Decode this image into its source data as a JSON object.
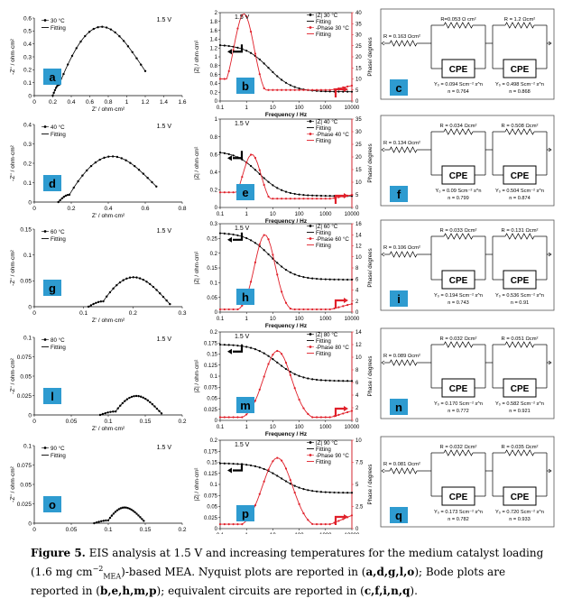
{
  "figure": {
    "rows": [
      {
        "temp": 30,
        "nyq": {
          "letter": "a",
          "legend": [
            "30 °C",
            "Fitting"
          ],
          "voltage": "1.5 V",
          "xlim": [
            0,
            1.6
          ],
          "ylim": [
            0,
            0.6
          ],
          "xticks": [
            "0",
            "0.2",
            "0.4",
            "0.6",
            "0.8",
            "1",
            "1.2",
            "1.4",
            "1.6"
          ],
          "yticks": [
            "0",
            "0.1",
            "0.2",
            "0.3",
            "0.4",
            "0.5",
            "0.6"
          ],
          "xlabel": "Z' / ohm·cm²",
          "ylabel": "-Z'' / ohm·cm²",
          "curve": {
            "x0": 0.2,
            "bend": 0.27,
            "xmax": 1.2,
            "peak_x": 0.8,
            "peak_y": 0.47,
            "end_y": 0.19
          }
        },
        "bode": {
          "letter": "b",
          "voltage": "1.5 V",
          "legend": [
            "|Z| 30 °C",
            "Fitting",
            "-Phase 30 °C",
            "Fitting"
          ],
          "yleft": [
            0,
            2
          ],
          "yright": [
            0,
            40
          ],
          "lticks": [
            "0",
            "0.2",
            "0.4",
            "0.6",
            "0.8",
            "1",
            "1.2",
            "1.4",
            "1.6",
            "1.8",
            "2"
          ],
          "rticks": [
            "0",
            "5",
            "10",
            "15",
            "20",
            "25",
            "30",
            "35",
            "40"
          ],
          "xticks": [
            "0.1",
            "1",
            "10",
            "100",
            "1000",
            "10000"
          ],
          "xlabel": "Frequency / Hz",
          "ylabel_l": "|Z| / ohm·cm²",
          "ylabel_r": "Phase/ degrees",
          "z": {
            "hi": 1.28,
            "lo": 0.21,
            "f50": 7
          },
          "phase": {
            "peak": 39.5,
            "fpk": 0.8,
            "w": 0.55,
            "low": 10,
            "hf": 2,
            "baseline": 5
          }
        },
        "circuit": {
          "letter": "c",
          "Rs": "R = 0.163 Ωcm²",
          "cpe1": {
            "R": "R=0.053 Ω cm²",
            "Y": "Y₀ = 0.094 Scm⁻² s^n",
            "n": "n = 0.764"
          },
          "cpe2": {
            "R": "R = 1.2 Ωcm²",
            "Y": "Y₀ = 0.498 Scm⁻² s^n",
            "n": "n = 0.868"
          },
          "cpe_label": "CPE"
        }
      },
      {
        "temp": 40,
        "nyq": {
          "letter": "d",
          "legend": [
            "40 °C",
            "Fitting"
          ],
          "voltage": "1.5 V",
          "xlim": [
            0,
            0.8
          ],
          "ylim": [
            0,
            0.4
          ],
          "xticks": [
            "0",
            "0.2",
            "0.4",
            "0.6",
            "0.8"
          ],
          "yticks": [
            "0",
            "0.1",
            "0.2",
            "0.3",
            "0.4"
          ],
          "xlabel": "Z' / ohm·cm²",
          "ylabel": "-Z'' / ohm·cm²",
          "curve": {
            "x0": 0.13,
            "bend": 0.19,
            "xmax": 0.66,
            "peak_x": 0.42,
            "peak_y": 0.21,
            "end_y": 0.08
          }
        },
        "bode": {
          "letter": "e",
          "voltage": "1.5 V",
          "legend": [
            "|Z| 40 °C",
            "Fitting",
            "-Phase 40 °C",
            "Fitting"
          ],
          "yleft": [
            0,
            1
          ],
          "yright": [
            0,
            35
          ],
          "lticks": [
            "0",
            "0.2",
            "0.4",
            "0.6",
            "0.8",
            "1"
          ],
          "rticks": [
            "0",
            "5",
            "10",
            "15",
            "20",
            "25",
            "30",
            "35"
          ],
          "xticks": [
            "0.1",
            "1",
            "10",
            "100",
            "1000",
            "10000"
          ],
          "xlabel": "Frequency / Hz",
          "ylabel_l": "|Z| / ohm·cm²",
          "ylabel_r": "Phase/ degrees",
          "z": {
            "hi": 0.64,
            "lo": 0.13,
            "f50": 3
          },
          "phase": {
            "peak": 21,
            "fpk": 1.6,
            "w": 0.5,
            "low": 6,
            "hf": 1.5,
            "baseline": 3.5
          }
        },
        "circuit": {
          "letter": "f",
          "Rs": "R = 0.134 Ωcm²",
          "cpe1": {
            "R": "R = 0.034 Ωcm²",
            "Y": "Y₀ = 0.09 Scm⁻² s^n",
            "n": "n = 0.799"
          },
          "cpe2": {
            "R": "R = 0.508 Ωcm²",
            "Y": "Y₀ = 0.504 Scm⁻² s^n",
            "n": "n = 0.874"
          },
          "cpe_label": "CPE"
        }
      },
      {
        "temp": 60,
        "nyq": {
          "letter": "g",
          "legend": [
            "60 °C",
            "Fitting"
          ],
          "voltage": "1.5 V",
          "xlim": [
            0,
            0.3
          ],
          "ylim": [
            0,
            0.15
          ],
          "xticks": [
            "0",
            "0.1",
            "0.2",
            "0.3"
          ],
          "yticks": [
            "0",
            "0.05",
            "0.1",
            "0.15"
          ],
          "xlabel": "Z' / ohm·cm²",
          "ylabel": "-Z'' / ohm·cm²",
          "curve": {
            "x0": 0.11,
            "bend": 0.14,
            "xmax": 0.275,
            "peak_x": 0.205,
            "peak_y": 0.058,
            "end_y": 0.005
          }
        },
        "bode": {
          "letter": "h",
          "voltage": "1.5 V",
          "legend": [
            "|Z| 60 °C",
            "Fitting",
            "-Phase 60 °C",
            "Fitting"
          ],
          "yleft": [
            0,
            0.3
          ],
          "yright": [
            0,
            16
          ],
          "lticks": [
            "0",
            "0.05",
            "0.1",
            "0.15",
            "0.2",
            "0.25",
            "0.3"
          ],
          "rticks": [
            "0",
            "2",
            "4",
            "6",
            "8",
            "10",
            "12",
            "14",
            "16"
          ],
          "xticks": [
            "0.1",
            "1",
            "10",
            "100",
            "1000",
            "10000"
          ],
          "xlabel": "Frequency / Hz",
          "ylabel_l": "|Z| / ohm·cm²",
          "ylabel_r": "Phase/ degrees",
          "z": {
            "hi": 0.27,
            "lo": 0.11,
            "f50": 8
          },
          "phase": {
            "peak": 14,
            "fpk": 5,
            "w": 0.55,
            "low": 0.5,
            "hf": 1,
            "baseline": 0.5
          }
        },
        "circuit": {
          "letter": "i",
          "Rs": "R = 0.106 Ωcm²",
          "cpe1": {
            "R": "R = 0.033 Ωcm²",
            "Y": "Y₀ = 0.194 Scm⁻² s^n",
            "n": "n = 0.743"
          },
          "cpe2": {
            "R": "R = 0.131 Ωcm²",
            "Y": "Y₀ = 0.536 Scm⁻² s^n",
            "n": "n = 0.91"
          },
          "cpe_label": "CPE"
        }
      },
      {
        "temp": 80,
        "nyq": {
          "letter": "l",
          "legend": [
            "80 °C",
            "Fitting"
          ],
          "voltage": "1.5 V",
          "xlim": [
            0,
            0.2
          ],
          "ylim": [
            0,
            0.1
          ],
          "xticks": [
            "0",
            "0.05",
            "0.1",
            "0.15",
            "0.2"
          ],
          "yticks": [
            "0",
            "0.025",
            "0.05",
            "0.075",
            "0.1"
          ],
          "xlabel": "Z' / ohm·cm²",
          "ylabel": "-Z'' / ohm·cm²",
          "curve": {
            "x0": 0.089,
            "bend": 0.11,
            "xmax": 0.172,
            "peak_x": 0.14,
            "peak_y": 0.025,
            "end_y": 0.002
          }
        },
        "bode": {
          "letter": "m",
          "voltage": "1.5 V",
          "legend": [
            "|Z| 80 °C",
            "Fitting",
            "-Phase 80 °C",
            "Fitting"
          ],
          "yleft": [
            0,
            0.2
          ],
          "yright": [
            0,
            14
          ],
          "lticks": [
            "0",
            "0.025",
            "0.05",
            "0.075",
            "0.1",
            "0.125",
            "0.15",
            "0.175",
            "0.2"
          ],
          "rticks": [
            "0",
            "2",
            "4",
            "6",
            "8",
            "10",
            "12",
            "14"
          ],
          "xticks": [
            "0.1",
            "1",
            "10",
            "100",
            "1000",
            "10000"
          ],
          "xlabel": "Frequency / Hz",
          "ylabel_l": "|Z| / ohm·cm²",
          "ylabel_r": "Phase / degrees",
          "z": {
            "hi": 0.172,
            "lo": 0.089,
            "f50": 15
          },
          "phase": {
            "peak": 11,
            "fpk": 15,
            "w": 0.75,
            "low": 0.5,
            "hf": 1,
            "baseline": 0.5
          }
        },
        "circuit": {
          "letter": "n",
          "Rs": "R = 0.089 Ωcm²",
          "cpe1": {
            "R": "R = 0.032 Ωcm²",
            "Y": "Y₀ = 0.170 Scm⁻² s^n",
            "n": "n = 0.772"
          },
          "cpe2": {
            "R": "R = 0.051 Ωcm²",
            "Y": "Y₀ = 0.582 Scm⁻² s^n",
            "n": "n = 0.921"
          },
          "cpe_label": "CPE"
        }
      },
      {
        "temp": 90,
        "nyq": {
          "letter": "o",
          "legend": [
            "90 °C",
            "Fitting"
          ],
          "voltage": "1.5 V",
          "xlim": [
            0,
            0.2
          ],
          "ylim": [
            0,
            0.1
          ],
          "xticks": [
            "0",
            "0.05",
            "0.1",
            "0.15",
            "0.2"
          ],
          "yticks": [
            "0",
            "0.025",
            "0.05",
            "0.075",
            "0.1"
          ],
          "xlabel": "Z' / ohm·cm²",
          "ylabel": "-Z'' / ohm·cm²",
          "curve": {
            "x0": 0.081,
            "bend": 0.1,
            "xmax": 0.148,
            "peak_x": 0.13,
            "peak_y": 0.02,
            "end_y": 0.003
          }
        },
        "bode": {
          "letter": "p",
          "voltage": "1.5 V",
          "legend": [
            "|Z| 90 °C",
            "Fitting",
            "-Phase 90 °C",
            "Fitting"
          ],
          "yleft": [
            0,
            0.2
          ],
          "yright": [
            0,
            10
          ],
          "lticks": [
            "0",
            "0.025",
            "0.05",
            "0.075",
            "0.1",
            "0.125",
            "0.15",
            "0.175",
            "0.2"
          ],
          "rticks": [
            "0",
            "2.5",
            "5",
            "7.5",
            "10"
          ],
          "xticks": [
            "0.1",
            "1",
            "10",
            "100",
            "1000",
            "10000"
          ],
          "xlabel": "Frequency / Hz",
          "ylabel_l": "|Z| / ohm·cm²",
          "ylabel_r": "Phase / degrees",
          "z": {
            "hi": 0.148,
            "lo": 0.081,
            "f50": 20
          },
          "phase": {
            "peak": 8,
            "fpk": 15,
            "w": 0.8,
            "low": 0.5,
            "hf": 1,
            "baseline": 0.5
          }
        },
        "circuit": {
          "letter": "q",
          "Rs": "R = 0.081 Ωcm²",
          "cpe1": {
            "R": "R = 0.032 Ωcm²",
            "Y": "Y₀ = 0.173 Scm⁻² s^n",
            "n": "n = 0.782"
          },
          "cpe2": {
            "R": "R = 0.035 Ωcm²",
            "Y": "Y₀ = 0.720 Scm⁻² s^n",
            "n": "n = 0.933"
          },
          "cpe_label": "CPE"
        }
      }
    ]
  },
  "caption": {
    "label": "Figure 5.",
    "line1": "EIS analysis at 1.5 V and increasing temperatures for the medium catalyst loading (1.6 mg cm",
    "sup": "−2",
    "sub": "MEA",
    "line2": ")-based MEA. Nyquist plots are reported in (",
    "nyq_letters": "a,d,g,l,o",
    "line3": "); Bode plots are reported in (",
    "bode_letters": "b,e,h,m,p",
    "line4": "); equivalent circuits are reported in (",
    "circ_letters": "c,f,i,n,q",
    "line5": ")."
  },
  "colors": {
    "black": "#000000",
    "red": "#e0202a",
    "letterbox": "#2e9bd0",
    "frame": "#555555"
  }
}
